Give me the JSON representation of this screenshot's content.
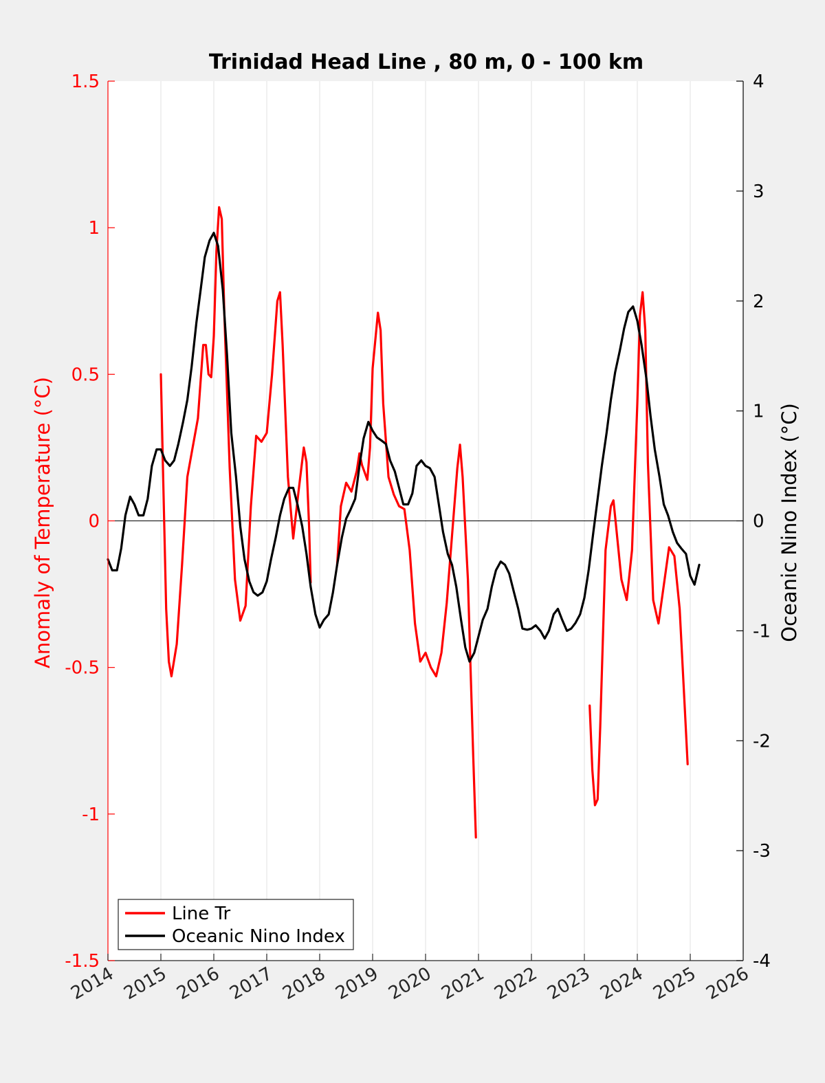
{
  "chart_data": {
    "type": "line",
    "title": "Trinidad Head Line , 80 m, 0 - 100 km",
    "xlim": [
      2014,
      2026
    ],
    "x_ticks": [
      "2014",
      "2015",
      "2016",
      "2017",
      "2018",
      "2019",
      "2020",
      "2021",
      "2022",
      "2023",
      "2024",
      "2025",
      "2026"
    ],
    "grid_x": true,
    "legend_location": "bottom-left",
    "left_axis": {
      "label": "Anomaly of Temperature (°C)",
      "ylim": [
        -1.5,
        1.5
      ],
      "ticks": [
        "1.5",
        "1",
        "0.5",
        "0",
        "-0.5",
        "-1",
        "-1.5"
      ],
      "color": "#ff0000"
    },
    "right_axis": {
      "label": "Oceanic Nino Index (°C)",
      "ylim": [
        -4,
        4
      ],
      "ticks": [
        "4",
        "3",
        "2",
        "1",
        "0",
        "-1",
        "-2",
        "-3",
        "-4"
      ],
      "color": "#000000"
    },
    "series": [
      {
        "name": "Line Tr",
        "axis": "left",
        "color": "#ff0000",
        "segments": [
          [
            [
              2015.0,
              0.5
            ],
            [
              2015.05,
              0.1
            ],
            [
              2015.1,
              -0.3
            ],
            [
              2015.15,
              -0.48
            ],
            [
              2015.2,
              -0.53
            ],
            [
              2015.3,
              -0.42
            ],
            [
              2015.4,
              -0.15
            ],
            [
              2015.5,
              0.15
            ],
            [
              2015.6,
              0.25
            ],
            [
              2015.7,
              0.35
            ],
            [
              2015.8,
              0.6
            ],
            [
              2015.85,
              0.6
            ],
            [
              2015.9,
              0.5
            ],
            [
              2015.95,
              0.49
            ],
            [
              2016.0,
              0.63
            ],
            [
              2016.05,
              0.92
            ],
            [
              2016.1,
              1.07
            ],
            [
              2016.15,
              1.03
            ],
            [
              2016.2,
              0.7
            ],
            [
              2016.3,
              0.18
            ],
            [
              2016.4,
              -0.2
            ],
            [
              2016.5,
              -0.34
            ],
            [
              2016.6,
              -0.29
            ],
            [
              2016.7,
              0.05
            ],
            [
              2016.8,
              0.29
            ],
            [
              2016.9,
              0.27
            ],
            [
              2017.0,
              0.3
            ],
            [
              2017.1,
              0.5
            ],
            [
              2017.2,
              0.75
            ],
            [
              2017.25,
              0.78
            ],
            [
              2017.3,
              0.6
            ],
            [
              2017.4,
              0.15
            ],
            [
              2017.5,
              -0.06
            ],
            [
              2017.6,
              0.1
            ],
            [
              2017.7,
              0.25
            ],
            [
              2017.75,
              0.2
            ],
            [
              2017.8,
              -0.02
            ],
            [
              2017.83,
              -0.21
            ]
          ],
          [
            [
              2018.33,
              -0.15
            ],
            [
              2018.4,
              0.05
            ],
            [
              2018.5,
              0.13
            ],
            [
              2018.6,
              0.1
            ],
            [
              2018.7,
              0.17
            ],
            [
              2018.75,
              0.23
            ],
            [
              2018.8,
              0.19
            ],
            [
              2018.9,
              0.14
            ],
            [
              2018.95,
              0.25
            ],
            [
              2019.0,
              0.52
            ],
            [
              2019.1,
              0.71
            ],
            [
              2019.15,
              0.65
            ],
            [
              2019.2,
              0.4
            ],
            [
              2019.3,
              0.15
            ],
            [
              2019.4,
              0.09
            ],
            [
              2019.5,
              0.05
            ],
            [
              2019.6,
              0.04
            ],
            [
              2019.7,
              -0.1
            ],
            [
              2019.8,
              -0.35
            ],
            [
              2019.9,
              -0.48
            ],
            [
              2020.0,
              -0.45
            ],
            [
              2020.1,
              -0.5
            ],
            [
              2020.2,
              -0.53
            ],
            [
              2020.3,
              -0.45
            ],
            [
              2020.4,
              -0.28
            ],
            [
              2020.5,
              -0.05
            ],
            [
              2020.6,
              0.18
            ],
            [
              2020.65,
              0.26
            ],
            [
              2020.7,
              0.15
            ],
            [
              2020.8,
              -0.2
            ],
            [
              2020.85,
              -0.5
            ],
            [
              2020.9,
              -0.8
            ],
            [
              2020.95,
              -1.08
            ]
          ],
          [
            [
              2023.1,
              -0.63
            ],
            [
              2023.15,
              -0.85
            ],
            [
              2023.2,
              -0.97
            ],
            [
              2023.25,
              -0.95
            ],
            [
              2023.3,
              -0.7
            ],
            [
              2023.4,
              -0.1
            ],
            [
              2023.5,
              0.05
            ],
            [
              2023.55,
              0.07
            ],
            [
              2023.6,
              -0.02
            ],
            [
              2023.7,
              -0.2
            ],
            [
              2023.8,
              -0.27
            ],
            [
              2023.9,
              -0.1
            ],
            [
              2024.0,
              0.4
            ],
            [
              2024.05,
              0.7
            ],
            [
              2024.1,
              0.78
            ],
            [
              2024.15,
              0.65
            ],
            [
              2024.2,
              0.2
            ],
            [
              2024.3,
              -0.27
            ],
            [
              2024.4,
              -0.35
            ],
            [
              2024.5,
              -0.22
            ],
            [
              2024.6,
              -0.09
            ],
            [
              2024.7,
              -0.12
            ],
            [
              2024.8,
              -0.3
            ],
            [
              2024.9,
              -0.65
            ],
            [
              2024.95,
              -0.83
            ]
          ]
        ]
      },
      {
        "name": "Oceanic Nino Index",
        "axis": "right",
        "color": "#000000",
        "segments": [
          [
            [
              2014.0,
              -0.35
            ],
            [
              2014.08,
              -0.45
            ],
            [
              2014.17,
              -0.45
            ],
            [
              2014.25,
              -0.25
            ],
            [
              2014.33,
              0.05
            ],
            [
              2014.42,
              0.22
            ],
            [
              2014.5,
              0.15
            ],
            [
              2014.58,
              0.05
            ],
            [
              2014.67,
              0.05
            ],
            [
              2014.75,
              0.2
            ],
            [
              2014.83,
              0.5
            ],
            [
              2014.92,
              0.65
            ],
            [
              2015.0,
              0.65
            ],
            [
              2015.08,
              0.55
            ],
            [
              2015.17,
              0.5
            ],
            [
              2015.25,
              0.55
            ],
            [
              2015.33,
              0.7
            ],
            [
              2015.42,
              0.9
            ],
            [
              2015.5,
              1.1
            ],
            [
              2015.58,
              1.4
            ],
            [
              2015.67,
              1.8
            ],
            [
              2015.75,
              2.1
            ],
            [
              2015.83,
              2.4
            ],
            [
              2015.92,
              2.55
            ],
            [
              2016.0,
              2.62
            ],
            [
              2016.08,
              2.5
            ],
            [
              2016.17,
              2.1
            ],
            [
              2016.25,
              1.5
            ],
            [
              2016.33,
              0.8
            ],
            [
              2016.42,
              0.4
            ],
            [
              2016.5,
              -0.05
            ],
            [
              2016.58,
              -0.35
            ],
            [
              2016.67,
              -0.55
            ],
            [
              2016.75,
              -0.65
            ],
            [
              2016.83,
              -0.68
            ],
            [
              2016.92,
              -0.65
            ],
            [
              2017.0,
              -0.55
            ],
            [
              2017.08,
              -0.35
            ],
            [
              2017.17,
              -0.15
            ],
            [
              2017.25,
              0.05
            ],
            [
              2017.33,
              0.2
            ],
            [
              2017.42,
              0.3
            ],
            [
              2017.5,
              0.3
            ],
            [
              2017.58,
              0.15
            ],
            [
              2017.67,
              -0.05
            ],
            [
              2017.75,
              -0.3
            ],
            [
              2017.83,
              -0.6
            ],
            [
              2017.92,
              -0.85
            ],
            [
              2018.0,
              -0.97
            ],
            [
              2018.08,
              -0.9
            ],
            [
              2018.17,
              -0.85
            ],
            [
              2018.25,
              -0.65
            ],
            [
              2018.33,
              -0.4
            ],
            [
              2018.42,
              -0.15
            ],
            [
              2018.5,
              0.02
            ],
            [
              2018.58,
              0.1
            ],
            [
              2018.67,
              0.2
            ],
            [
              2018.75,
              0.5
            ],
            [
              2018.83,
              0.75
            ],
            [
              2018.92,
              0.9
            ],
            [
              2019.0,
              0.82
            ],
            [
              2019.08,
              0.76
            ],
            [
              2019.17,
              0.73
            ],
            [
              2019.25,
              0.7
            ],
            [
              2019.33,
              0.55
            ],
            [
              2019.42,
              0.45
            ],
            [
              2019.5,
              0.3
            ],
            [
              2019.58,
              0.15
            ],
            [
              2019.67,
              0.15
            ],
            [
              2019.75,
              0.25
            ],
            [
              2019.83,
              0.5
            ],
            [
              2019.92,
              0.55
            ],
            [
              2020.0,
              0.5
            ],
            [
              2020.08,
              0.48
            ],
            [
              2020.17,
              0.4
            ],
            [
              2020.25,
              0.15
            ],
            [
              2020.33,
              -0.1
            ],
            [
              2020.42,
              -0.3
            ],
            [
              2020.5,
              -0.4
            ],
            [
              2020.58,
              -0.6
            ],
            [
              2020.67,
              -0.9
            ],
            [
              2020.75,
              -1.15
            ],
            [
              2020.83,
              -1.28
            ],
            [
              2020.92,
              -1.2
            ],
            [
              2021.0,
              -1.05
            ],
            [
              2021.08,
              -0.9
            ],
            [
              2021.17,
              -0.8
            ],
            [
              2021.25,
              -0.6
            ],
            [
              2021.33,
              -0.45
            ],
            [
              2021.42,
              -0.37
            ],
            [
              2021.5,
              -0.4
            ],
            [
              2021.58,
              -0.48
            ],
            [
              2021.67,
              -0.65
            ],
            [
              2021.75,
              -0.8
            ],
            [
              2021.83,
              -0.98
            ],
            [
              2021.92,
              -0.99
            ],
            [
              2022.0,
              -0.98
            ],
            [
              2022.08,
              -0.95
            ],
            [
              2022.17,
              -1.0
            ],
            [
              2022.25,
              -1.07
            ],
            [
              2022.33,
              -1.0
            ],
            [
              2022.42,
              -0.85
            ],
            [
              2022.5,
              -0.8
            ],
            [
              2022.58,
              -0.9
            ],
            [
              2022.67,
              -1.0
            ],
            [
              2022.75,
              -0.98
            ],
            [
              2022.83,
              -0.93
            ],
            [
              2022.92,
              -0.85
            ],
            [
              2023.0,
              -0.7
            ],
            [
              2023.08,
              -0.45
            ],
            [
              2023.17,
              -0.1
            ],
            [
              2023.25,
              0.2
            ],
            [
              2023.33,
              0.5
            ],
            [
              2023.42,
              0.8
            ],
            [
              2023.5,
              1.1
            ],
            [
              2023.58,
              1.35
            ],
            [
              2023.67,
              1.55
            ],
            [
              2023.75,
              1.75
            ],
            [
              2023.83,
              1.9
            ],
            [
              2023.92,
              1.95
            ],
            [
              2024.0,
              1.82
            ],
            [
              2024.08,
              1.6
            ],
            [
              2024.17,
              1.3
            ],
            [
              2024.25,
              0.95
            ],
            [
              2024.33,
              0.65
            ],
            [
              2024.42,
              0.4
            ],
            [
              2024.5,
              0.15
            ],
            [
              2024.58,
              0.05
            ],
            [
              2024.67,
              -0.1
            ],
            [
              2024.75,
              -0.2
            ],
            [
              2024.83,
              -0.25
            ],
            [
              2024.92,
              -0.3
            ],
            [
              2025.0,
              -0.5
            ],
            [
              2025.08,
              -0.58
            ],
            [
              2025.17,
              -0.4
            ]
          ]
        ]
      }
    ]
  }
}
